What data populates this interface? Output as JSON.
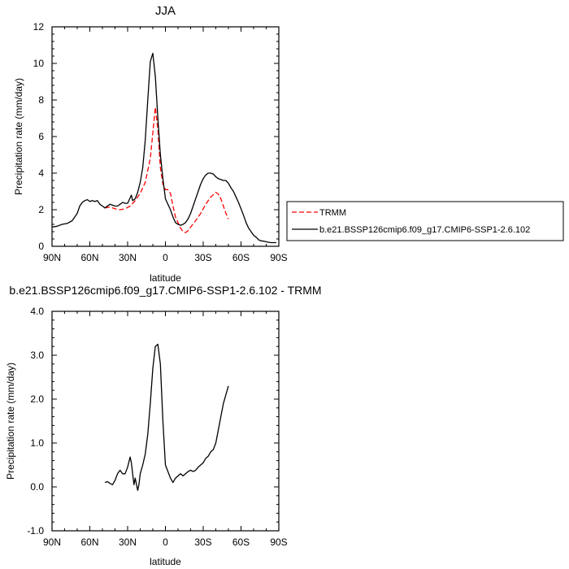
{
  "chart_data": [
    {
      "type": "line",
      "title": "JJA",
      "xlabel": "latitude",
      "ylabel": "Precipitation rate (mm/day)",
      "xticks": [
        "90N",
        "60N",
        "30N",
        "0",
        "30S",
        "60S",
        "90S"
      ],
      "xtick_values": [
        90,
        60,
        30,
        0,
        -30,
        -60,
        -90
      ],
      "xlim": [
        90,
        -90
      ],
      "ylim": [
        0,
        12
      ],
      "yticks": [
        "0",
        "2",
        "4",
        "6",
        "8",
        "10",
        "12"
      ],
      "ytick_values": [
        0,
        2,
        4,
        6,
        8,
        10,
        12
      ],
      "legend_position": "right",
      "series": [
        {
          "name": "TRMM",
          "color": "#ff0000",
          "dash": "dashed",
          "x": [
            48,
            44,
            40,
            36,
            32,
            28,
            24,
            20,
            16,
            12,
            10,
            8,
            6,
            4,
            2,
            0,
            -2,
            -4,
            -6,
            -8,
            -10,
            -12,
            -14,
            -16,
            -18,
            -20,
            -24,
            -28,
            -32,
            -36,
            -40,
            -42,
            -44,
            -46,
            -48,
            -50
          ],
          "y": [
            2.1,
            2.15,
            2.05,
            2.0,
            2.05,
            2.2,
            2.5,
            2.9,
            3.5,
            4.8,
            6.2,
            7.6,
            6.4,
            4.3,
            3.4,
            3.1,
            3.1,
            2.9,
            2.2,
            1.6,
            1.3,
            1.0,
            0.8,
            0.75,
            0.85,
            1.05,
            1.4,
            1.8,
            2.3,
            2.7,
            2.95,
            2.85,
            2.6,
            2.2,
            1.8,
            1.5
          ]
        },
        {
          "name": "b.e21.BSSP126cmip6.f09_g17.CMIP6-SSP1-2.6.102",
          "color": "#000000",
          "dash": "solid",
          "x": [
            90,
            86,
            82,
            78,
            74,
            70,
            68,
            66,
            64,
            62,
            60,
            58,
            56,
            54,
            52,
            50,
            48,
            46,
            44,
            42,
            40,
            38,
            36,
            34,
            32,
            30,
            28,
            27,
            26,
            24,
            22,
            20,
            18,
            16,
            14,
            12,
            10,
            8,
            6,
            4,
            2,
            0,
            -2,
            -4,
            -6,
            -8,
            -10,
            -12,
            -14,
            -16,
            -18,
            -20,
            -22,
            -24,
            -26,
            -28,
            -30,
            -32,
            -34,
            -36,
            -38,
            -40,
            -42,
            -44,
            -46,
            -48,
            -50,
            -52,
            -54,
            -56,
            -58,
            -60,
            -62,
            -64,
            -66,
            -68,
            -70,
            -72,
            -74,
            -76,
            -78,
            -80,
            -82,
            -84,
            -86,
            -88
          ],
          "y": [
            1.05,
            1.1,
            1.2,
            1.25,
            1.4,
            1.8,
            2.2,
            2.4,
            2.5,
            2.55,
            2.45,
            2.5,
            2.45,
            2.5,
            2.3,
            2.2,
            2.1,
            2.2,
            2.3,
            2.25,
            2.2,
            2.2,
            2.3,
            2.4,
            2.35,
            2.35,
            2.65,
            2.8,
            2.5,
            2.6,
            2.95,
            3.5,
            4.3,
            5.8,
            8.0,
            10.1,
            10.55,
            9.3,
            7.0,
            5.0,
            3.7,
            2.6,
            2.3,
            2.0,
            1.6,
            1.3,
            1.2,
            1.15,
            1.2,
            1.3,
            1.5,
            1.8,
            2.2,
            2.6,
            3.0,
            3.4,
            3.7,
            3.9,
            4.0,
            4.0,
            3.95,
            3.8,
            3.7,
            3.65,
            3.6,
            3.6,
            3.45,
            3.2,
            3.0,
            2.7,
            2.4,
            2.05,
            1.7,
            1.3,
            1.0,
            0.8,
            0.6,
            0.5,
            0.35,
            0.3,
            0.28,
            0.25,
            0.22,
            0.2,
            0.2,
            0.2
          ]
        }
      ]
    },
    {
      "type": "line",
      "title": "b.e21.BSSP126cmip6.f09_g17.CMIP6-SSP1-2.6.102 - TRMM",
      "xlabel": "latitude",
      "ylabel": "Precipitation rate (mm/day)",
      "xticks": [
        "90N",
        "60N",
        "30N",
        "0",
        "30S",
        "60S",
        "90S"
      ],
      "xtick_values": [
        90,
        60,
        30,
        0,
        -30,
        -60,
        -90
      ],
      "xlim": [
        90,
        -90
      ],
      "ylim": [
        -1,
        4
      ],
      "yticks": [
        "-1.0",
        "0.0",
        "1.0",
        "2.0",
        "3.0",
        "4.0"
      ],
      "ytick_values": [
        -1,
        0,
        1,
        2,
        3,
        4
      ],
      "series": [
        {
          "color": "#000000",
          "dash": "solid",
          "x": [
            48,
            46,
            44,
            42,
            40,
            38,
            36,
            34,
            32,
            30,
            28,
            27,
            26,
            25,
            24,
            22,
            21,
            20,
            18,
            16,
            14,
            12,
            10,
            8,
            6,
            4,
            2,
            0,
            -2,
            -4,
            -6,
            -8,
            -10,
            -12,
            -14,
            -16,
            -18,
            -20,
            -22,
            -24,
            -26,
            -28,
            -30,
            -32,
            -34,
            -36,
            -38,
            -40,
            -42,
            -44,
            -46,
            -48,
            -50
          ],
          "y": [
            0.1,
            0.12,
            0.08,
            0.05,
            0.15,
            0.3,
            0.38,
            0.3,
            0.3,
            0.45,
            0.68,
            0.55,
            0.3,
            0.05,
            0.2,
            -0.08,
            0.05,
            0.3,
            0.5,
            0.75,
            1.2,
            1.9,
            2.7,
            3.2,
            3.25,
            2.8,
            1.5,
            0.5,
            0.35,
            0.2,
            0.1,
            0.2,
            0.25,
            0.3,
            0.25,
            0.3,
            0.35,
            0.38,
            0.35,
            0.38,
            0.45,
            0.5,
            0.55,
            0.65,
            0.7,
            0.8,
            0.85,
            1.0,
            1.3,
            1.6,
            1.9,
            2.1,
            2.3
          ]
        }
      ]
    }
  ]
}
